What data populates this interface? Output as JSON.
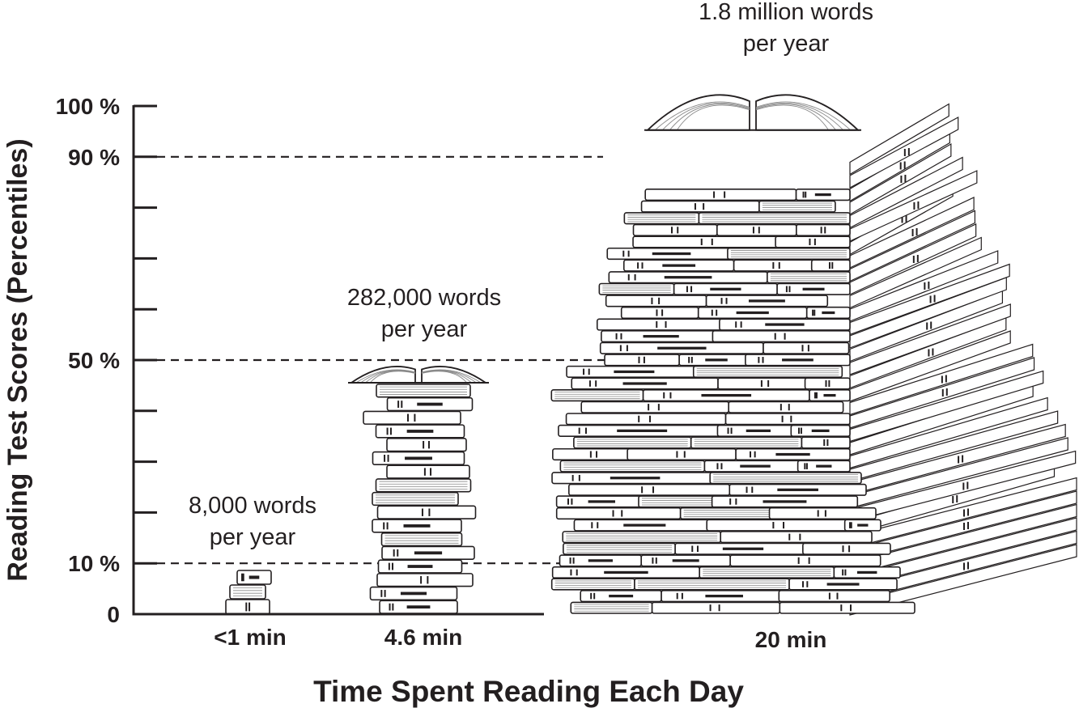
{
  "chart_data": {
    "type": "bar",
    "title": "",
    "xlabel": "Time Spent Reading Each Day",
    "ylabel": "Reading Test Scores (Percentiles)",
    "ylim": [
      0,
      100
    ],
    "yticks": [
      0,
      10,
      20,
      30,
      40,
      50,
      60,
      70,
      80,
      90,
      100
    ],
    "ytick_labels": [
      {
        "value": 0,
        "label": "0"
      },
      {
        "value": 10,
        "label": "10 %"
      },
      {
        "value": 50,
        "label": "50 %"
      },
      {
        "value": 90,
        "label": "90 %"
      },
      {
        "value": 100,
        "label": "100 %"
      }
    ],
    "grid": false,
    "categories": [
      "<1 min",
      "4.6 min",
      "20 min"
    ],
    "values": [
      10,
      50,
      90
    ],
    "annotations": [
      {
        "line1": "8,000 words",
        "line2": "per year"
      },
      {
        "line1": "282,000 words",
        "line2": "per year"
      },
      {
        "line1": "1.8 million words",
        "line2": "per year"
      }
    ],
    "colors": {
      "ink": "#231f20",
      "paper": "#ffffff",
      "page_lines": "#8a8a8a"
    }
  }
}
